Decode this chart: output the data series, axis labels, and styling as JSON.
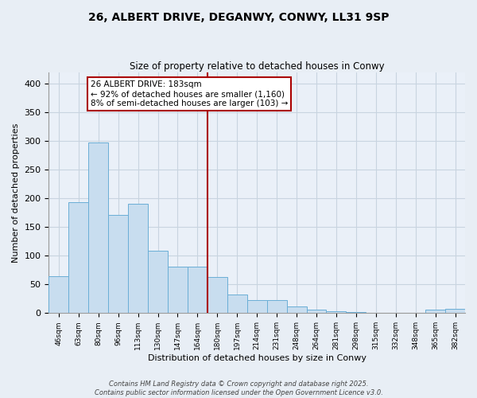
{
  "title": "26, ALBERT DRIVE, DEGANWY, CONWY, LL31 9SP",
  "subtitle": "Size of property relative to detached houses in Conwy",
  "xlabel": "Distribution of detached houses by size in Conwy",
  "ylabel": "Number of detached properties",
  "bar_labels": [
    "46sqm",
    "63sqm",
    "80sqm",
    "96sqm",
    "113sqm",
    "130sqm",
    "147sqm",
    "164sqm",
    "180sqm",
    "197sqm",
    "214sqm",
    "231sqm",
    "248sqm",
    "264sqm",
    "281sqm",
    "298sqm",
    "315sqm",
    "332sqm",
    "348sqm",
    "365sqm",
    "382sqm"
  ],
  "bar_heights": [
    65,
    193,
    298,
    171,
    190,
    109,
    81,
    81,
    63,
    32,
    23,
    22,
    11,
    6,
    3,
    2,
    1,
    1,
    1,
    6,
    7
  ],
  "bar_color": "#c8ddef",
  "bar_edge_color": "#6aaed6",
  "vline_index": 8,
  "vline_color": "#aa0000",
  "annotation_title": "26 ALBERT DRIVE: 183sqm",
  "annotation_line1": "← 92% of detached houses are smaller (1,160)",
  "annotation_line2": "8% of semi-detached houses are larger (103) →",
  "annotation_box_color": "#ffffff",
  "annotation_box_edge_color": "#aa0000",
  "ylim": [
    0,
    420
  ],
  "yticks": [
    0,
    50,
    100,
    150,
    200,
    250,
    300,
    350,
    400
  ],
  "footer_line1": "Contains HM Land Registry data © Crown copyright and database right 2025.",
  "footer_line2": "Contains public sector information licensed under the Open Government Licence v3.0.",
  "bg_color": "#e8eef5",
  "plot_bg_color": "#eaf0f8",
  "grid_color": "#c8d4e0"
}
